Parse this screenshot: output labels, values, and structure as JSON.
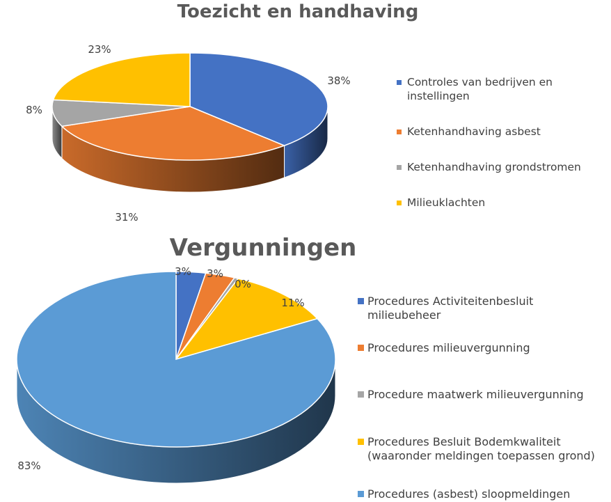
{
  "chart_data": [
    {
      "type": "pie",
      "title": "Toezicht en handhaving",
      "slices": [
        {
          "label": "Controles van bedrijven en instellingen",
          "value": 38,
          "display": "38%",
          "color": "#4472c4"
        },
        {
          "label": "Ketenhandhaving asbest",
          "value": 31,
          "display": "31%",
          "color": "#ed7d31"
        },
        {
          "label": "Ketenhandhaving grondstromen",
          "value": 8,
          "display": "8%",
          "color": "#a5a5a5"
        },
        {
          "label": "Milieuklachten",
          "value": 23,
          "display": "23%",
          "color": "#ffc000"
        }
      ],
      "legend_position": "right",
      "style": "3d"
    },
    {
      "type": "pie",
      "title": "Vergunningen",
      "slices": [
        {
          "label": "Procedures Activiteitenbesluit milieubeheer",
          "value": 3,
          "display": "3%",
          "color": "#4472c4"
        },
        {
          "label": "Procedures milieuvergunning",
          "value": 3,
          "display": "3%",
          "color": "#ed7d31"
        },
        {
          "label": "Procedure maatwerk milieuvergunning",
          "value": 0.4,
          "display": "0%",
          "color": "#a5a5a5"
        },
        {
          "label": "Procedures Besluit Bodemkwaliteit (waaronder meldingen toepassen grond)",
          "value": 11,
          "display": "11%",
          "color": "#ffc000"
        },
        {
          "label": "Procedures (asbest) sloopmeldingen",
          "value": 83,
          "display": "83%",
          "color": "#5b9bd5"
        }
      ],
      "legend_position": "right",
      "style": "3d"
    }
  ]
}
